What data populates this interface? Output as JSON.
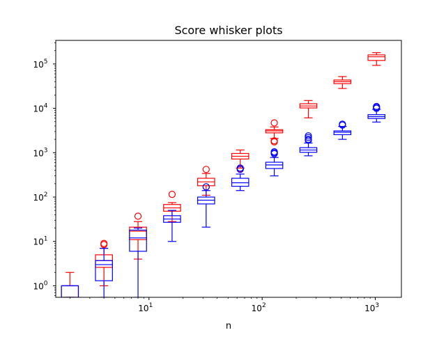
{
  "chart_data": {
    "type": "box",
    "title": "Score whisker plots",
    "xlabel": "n",
    "ylabel": "",
    "xscale": "log",
    "yscale": "log",
    "xlim": [
      1.5,
      1700
    ],
    "ylim": [
      0.55,
      340000
    ],
    "grid": false,
    "x_ticks": [
      {
        "value": 10,
        "base": "10",
        "exp": "1"
      },
      {
        "value": 100,
        "base": "10",
        "exp": "2"
      },
      {
        "value": 1000,
        "base": "10",
        "exp": "3"
      }
    ],
    "y_ticks": [
      {
        "value": 1,
        "base": "10",
        "exp": "0"
      },
      {
        "value": 10,
        "base": "10",
        "exp": "1"
      },
      {
        "value": 100,
        "base": "10",
        "exp": "2"
      },
      {
        "value": 1000,
        "base": "10",
        "exp": "3"
      },
      {
        "value": 10000,
        "base": "10",
        "exp": "4"
      },
      {
        "value": 100000,
        "base": "10",
        "exp": "5"
      }
    ],
    "series": [
      {
        "color": "#ff0000",
        "boxes": [
          {
            "x": 2,
            "whislo": 0.3,
            "q1": 0.3,
            "med": 1,
            "q3": 1,
            "whishi": 2,
            "fliers": []
          },
          {
            "x": 4,
            "whislo": 1,
            "q1": 2.6,
            "med": 3.7,
            "q3": 5,
            "whishi": 7,
            "fliers": [
              9,
              8.5
            ]
          },
          {
            "x": 8,
            "whislo": 4,
            "q1": 11,
            "med": 17,
            "q3": 21,
            "whishi": 28,
            "fliers": [
              37
            ]
          },
          {
            "x": 16,
            "whislo": 28,
            "q1": 48,
            "med": 57,
            "q3": 68,
            "whishi": 75,
            "fliers": [
              115
            ]
          },
          {
            "x": 32,
            "whislo": 110,
            "q1": 180,
            "med": 220,
            "q3": 265,
            "whishi": 340,
            "fliers": [
              420,
              170
            ]
          },
          {
            "x": 64,
            "whislo": 450,
            "q1": 720,
            "med": 830,
            "q3": 960,
            "whishi": 1150,
            "fliers": [
              430
            ]
          },
          {
            "x": 128,
            "whislo": 2100,
            "q1": 2800,
            "med": 3100,
            "q3": 3300,
            "whishi": 3800,
            "fliers": [
              4700,
              1850,
              1750
            ]
          },
          {
            "x": 256,
            "whislo": 6100,
            "q1": 10200,
            "med": 11300,
            "q3": 12700,
            "whishi": 15000,
            "fliers": []
          },
          {
            "x": 512,
            "whislo": 28000,
            "q1": 36000,
            "med": 40000,
            "q3": 43500,
            "whishi": 52000,
            "fliers": []
          },
          {
            "x": 1024,
            "whislo": 93000,
            "q1": 120000,
            "med": 145000,
            "q3": 160000,
            "whishi": 180000,
            "fliers": []
          }
        ]
      },
      {
        "color": "#0000ff",
        "boxes": [
          {
            "x": 2,
            "whislo": 0.3,
            "q1": 0.3,
            "med": 1,
            "q3": 1,
            "whishi": 1,
            "fliers": []
          },
          {
            "x": 4,
            "whislo": 0.3,
            "q1": 1.3,
            "med": 3,
            "q3": 3.7,
            "whishi": 7,
            "fliers": []
          },
          {
            "x": 8,
            "whislo": 0.3,
            "q1": 6,
            "med": 12,
            "q3": 18,
            "whishi": 20,
            "fliers": []
          },
          {
            "x": 16,
            "whislo": 10,
            "q1": 27,
            "med": 32,
            "q3": 38,
            "whishi": 50,
            "fliers": []
          },
          {
            "x": 32,
            "whislo": 21,
            "q1": 70,
            "med": 85,
            "q3": 100,
            "whishi": 140,
            "fliers": [
              170
            ]
          },
          {
            "x": 64,
            "whislo": 140,
            "q1": 175,
            "med": 210,
            "q3": 265,
            "whishi": 330,
            "fliers": [
              420,
              450
            ]
          },
          {
            "x": 128,
            "whislo": 300,
            "q1": 440,
            "med": 530,
            "q3": 610,
            "whishi": 780,
            "fliers": [
              1050,
              950,
              1000
            ]
          },
          {
            "x": 256,
            "whislo": 850,
            "q1": 1020,
            "med": 1150,
            "q3": 1300,
            "whishi": 1650,
            "fliers": [
              2000,
              2200,
              2400,
              1900
            ]
          },
          {
            "x": 512,
            "whislo": 2000,
            "q1": 2550,
            "med": 2900,
            "q3": 3100,
            "whishi": 3900,
            "fliers": [
              4200,
              4400
            ]
          },
          {
            "x": 1024,
            "whislo": 4900,
            "q1": 5900,
            "med": 6500,
            "q3": 7200,
            "whishi": 9500,
            "fliers": [
              10500,
              11000,
              10000
            ]
          }
        ]
      }
    ]
  }
}
